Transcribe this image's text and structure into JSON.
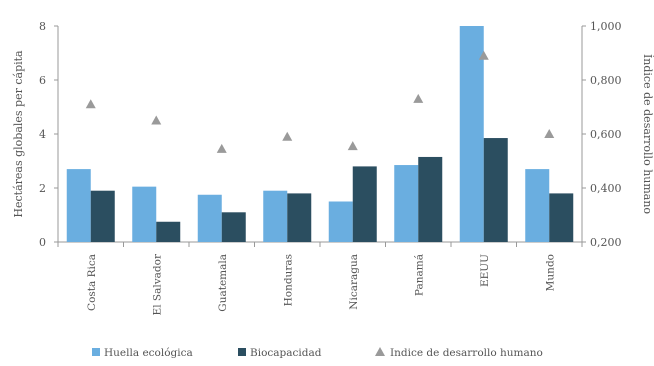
{
  "chart_data": {
    "type": "bar",
    "categories": [
      "Costa Rica",
      "El Salvador",
      "Guatemala",
      "Honduras",
      "Nicaragua",
      "Panamá",
      "EEUU",
      "Mundo"
    ],
    "series": [
      {
        "name": "Huella ecológica",
        "axis": "left",
        "kind": "bar",
        "values": [
          2.7,
          2.05,
          1.75,
          1.9,
          1.5,
          2.85,
          8.0,
          2.7
        ]
      },
      {
        "name": "Biocapacidad",
        "axis": "left",
        "kind": "bar",
        "values": [
          1.9,
          0.75,
          1.1,
          1.8,
          2.8,
          3.15,
          3.85,
          1.8
        ]
      },
      {
        "name": "Indice de desarrollo humano",
        "axis": "right",
        "kind": "marker",
        "values": [
          0.71,
          0.65,
          0.545,
          0.59,
          0.555,
          0.73,
          0.89,
          0.6
        ]
      }
    ],
    "ylabel": "Hectáreas globales per cápita",
    "ylim": [
      0,
      8
    ],
    "yticks": [
      "0",
      "2",
      "4",
      "6",
      "8"
    ],
    "y2label": "Índice de desarrollo humano",
    "y2lim": [
      0.2,
      1.0
    ],
    "y2ticks": [
      "0,200",
      "0,400",
      "0,600",
      "0,800",
      "1,000"
    ],
    "legend_position": "bottom",
    "colors": {
      "bar1": "#6aaee0",
      "bar2": "#2b4e60",
      "marker": "#9a9a9a",
      "axis": "#999999"
    }
  }
}
